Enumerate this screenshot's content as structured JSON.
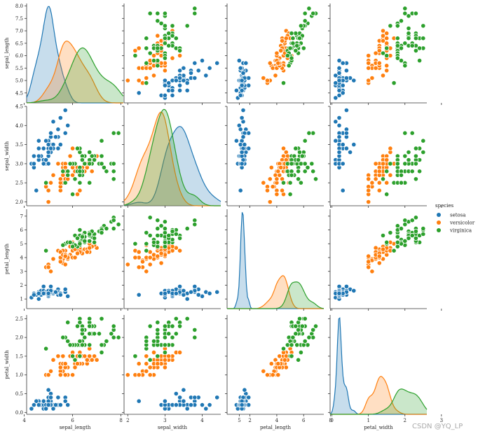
{
  "chart_data": {
    "type": "scatter",
    "variables": [
      "sepal_length",
      "sepal_width",
      "petal_length",
      "petal_width"
    ],
    "axis_ranges": {
      "sepal_length": [
        4.1,
        8.1
      ],
      "sepal_width": [
        1.9,
        4.5
      ],
      "petal_length": [
        0.3,
        7.5
      ],
      "petal_width": [
        -0.05,
        2.6
      ]
    },
    "x_tick_labels": {
      "sepal_length": [
        "4",
        "6",
        "8"
      ],
      "sepal_width": [
        "2",
        "3",
        "4",
        "5"
      ],
      "petal_length": [
        "2",
        "4",
        "6",
        "8"
      ],
      "petal_width": [
        "0",
        "1",
        "2",
        "3"
      ]
    },
    "y_tick_labels": {
      "sepal_length": [
        "4.5",
        "5.0",
        "5.5",
        "6.0",
        "6.5",
        "7.0",
        "7.5",
        "8.0"
      ],
      "sepal_width": [
        "2.0",
        "2.5",
        "3.0",
        "3.5",
        "4.0",
        "4.5"
      ],
      "petal_length": [
        "1",
        "2",
        "3",
        "4",
        "5",
        "6",
        "7"
      ],
      "petal_width": [
        "0.0",
        "0.5",
        "1.0",
        "1.5",
        "2.0",
        "2.5"
      ]
    },
    "legend": {
      "title": "species",
      "entries": [
        "setosa",
        "versicolor",
        "virginica"
      ],
      "position": "right"
    },
    "series": [
      {
        "name": "setosa",
        "color": "#1f77b4",
        "points": [
          [
            5.1,
            3.5,
            1.4,
            0.2
          ],
          [
            4.9,
            3.0,
            1.4,
            0.2
          ],
          [
            4.7,
            3.2,
            1.3,
            0.2
          ],
          [
            4.6,
            3.1,
            1.5,
            0.2
          ],
          [
            5.0,
            3.6,
            1.4,
            0.2
          ],
          [
            5.4,
            3.9,
            1.7,
            0.4
          ],
          [
            4.6,
            3.4,
            1.4,
            0.3
          ],
          [
            5.0,
            3.4,
            1.5,
            0.2
          ],
          [
            4.4,
            2.9,
            1.4,
            0.2
          ],
          [
            4.9,
            3.1,
            1.5,
            0.1
          ],
          [
            5.4,
            3.7,
            1.5,
            0.2
          ],
          [
            4.8,
            3.4,
            1.6,
            0.2
          ],
          [
            4.8,
            3.0,
            1.4,
            0.1
          ],
          [
            4.3,
            3.0,
            1.1,
            0.1
          ],
          [
            5.8,
            4.0,
            1.2,
            0.2
          ],
          [
            5.7,
            4.4,
            1.5,
            0.4
          ],
          [
            5.4,
            3.9,
            1.3,
            0.4
          ],
          [
            5.1,
            3.5,
            1.4,
            0.3
          ],
          [
            5.7,
            3.8,
            1.7,
            0.3
          ],
          [
            5.1,
            3.8,
            1.5,
            0.3
          ],
          [
            5.4,
            3.4,
            1.7,
            0.2
          ],
          [
            5.1,
            3.7,
            1.5,
            0.4
          ],
          [
            4.6,
            3.6,
            1.0,
            0.2
          ],
          [
            5.1,
            3.3,
            1.7,
            0.5
          ],
          [
            4.8,
            3.4,
            1.9,
            0.2
          ],
          [
            5.0,
            3.0,
            1.6,
            0.2
          ],
          [
            5.0,
            3.4,
            1.6,
            0.4
          ],
          [
            5.2,
            3.5,
            1.5,
            0.2
          ],
          [
            5.2,
            3.4,
            1.4,
            0.2
          ],
          [
            4.7,
            3.2,
            1.6,
            0.2
          ],
          [
            4.8,
            3.1,
            1.6,
            0.2
          ],
          [
            5.4,
            3.4,
            1.5,
            0.4
          ],
          [
            5.2,
            4.1,
            1.5,
            0.1
          ],
          [
            5.5,
            4.2,
            1.4,
            0.2
          ],
          [
            4.9,
            3.1,
            1.5,
            0.2
          ],
          [
            5.0,
            3.2,
            1.2,
            0.2
          ],
          [
            5.5,
            3.5,
            1.3,
            0.2
          ],
          [
            4.9,
            3.6,
            1.4,
            0.1
          ],
          [
            4.4,
            3.0,
            1.3,
            0.2
          ],
          [
            5.1,
            3.4,
            1.5,
            0.2
          ],
          [
            5.0,
            3.5,
            1.3,
            0.3
          ],
          [
            4.5,
            2.3,
            1.3,
            0.3
          ],
          [
            4.4,
            3.2,
            1.3,
            0.2
          ],
          [
            5.0,
            3.5,
            1.6,
            0.6
          ],
          [
            5.1,
            3.8,
            1.9,
            0.4
          ],
          [
            4.8,
            3.0,
            1.4,
            0.3
          ],
          [
            5.1,
            3.8,
            1.6,
            0.2
          ],
          [
            4.6,
            3.2,
            1.4,
            0.2
          ],
          [
            5.3,
            3.7,
            1.5,
            0.2
          ],
          [
            5.0,
            3.3,
            1.4,
            0.2
          ]
        ]
      },
      {
        "name": "versicolor",
        "color": "#ff7f0e",
        "points": [
          [
            7.0,
            3.2,
            4.7,
            1.4
          ],
          [
            6.4,
            3.2,
            4.5,
            1.5
          ],
          [
            6.9,
            3.1,
            4.9,
            1.5
          ],
          [
            5.5,
            2.3,
            4.0,
            1.3
          ],
          [
            6.5,
            2.8,
            4.6,
            1.5
          ],
          [
            5.7,
            2.8,
            4.5,
            1.3
          ],
          [
            6.3,
            3.3,
            4.7,
            1.6
          ],
          [
            4.9,
            2.4,
            3.3,
            1.0
          ],
          [
            6.6,
            2.9,
            4.6,
            1.3
          ],
          [
            5.2,
            2.7,
            3.9,
            1.4
          ],
          [
            5.0,
            2.0,
            3.5,
            1.0
          ],
          [
            5.9,
            3.0,
            4.2,
            1.5
          ],
          [
            6.0,
            2.2,
            4.0,
            1.0
          ],
          [
            6.1,
            2.9,
            4.7,
            1.4
          ],
          [
            5.6,
            2.9,
            3.6,
            1.3
          ],
          [
            6.7,
            3.1,
            4.4,
            1.4
          ],
          [
            5.6,
            3.0,
            4.5,
            1.5
          ],
          [
            5.8,
            2.7,
            4.1,
            1.0
          ],
          [
            6.2,
            2.2,
            4.5,
            1.5
          ],
          [
            5.6,
            2.5,
            3.9,
            1.1
          ],
          [
            5.9,
            3.2,
            4.8,
            1.8
          ],
          [
            6.1,
            2.8,
            4.0,
            1.3
          ],
          [
            6.3,
            2.5,
            4.9,
            1.5
          ],
          [
            6.1,
            2.8,
            4.7,
            1.2
          ],
          [
            6.4,
            2.9,
            4.3,
            1.3
          ],
          [
            6.6,
            3.0,
            4.4,
            1.4
          ],
          [
            6.8,
            2.8,
            4.8,
            1.4
          ],
          [
            6.7,
            3.0,
            5.0,
            1.7
          ],
          [
            6.0,
            2.9,
            4.5,
            1.5
          ],
          [
            5.7,
            2.6,
            3.5,
            1.0
          ],
          [
            5.5,
            2.4,
            3.8,
            1.1
          ],
          [
            5.5,
            2.4,
            3.7,
            1.0
          ],
          [
            5.8,
            2.7,
            3.9,
            1.2
          ],
          [
            6.0,
            2.7,
            5.1,
            1.6
          ],
          [
            5.4,
            3.0,
            4.5,
            1.5
          ],
          [
            6.0,
            3.4,
            4.5,
            1.6
          ],
          [
            6.7,
            3.1,
            4.7,
            1.5
          ],
          [
            6.3,
            2.3,
            4.4,
            1.3
          ],
          [
            5.6,
            3.0,
            4.1,
            1.3
          ],
          [
            5.5,
            2.5,
            4.0,
            1.3
          ],
          [
            5.5,
            2.6,
            4.4,
            1.2
          ],
          [
            6.1,
            3.0,
            4.6,
            1.4
          ],
          [
            5.8,
            2.6,
            4.0,
            1.2
          ],
          [
            5.0,
            2.3,
            3.3,
            1.0
          ],
          [
            5.6,
            2.7,
            4.2,
            1.3
          ],
          [
            5.7,
            3.0,
            4.2,
            1.2
          ],
          [
            5.7,
            2.9,
            4.2,
            1.3
          ],
          [
            6.2,
            2.9,
            4.3,
            1.3
          ],
          [
            5.1,
            2.5,
            3.0,
            1.1
          ],
          [
            5.7,
            2.8,
            4.1,
            1.3
          ]
        ]
      },
      {
        "name": "virginica",
        "color": "#2ca02c",
        "points": [
          [
            6.3,
            3.3,
            6.0,
            2.5
          ],
          [
            5.8,
            2.7,
            5.1,
            1.9
          ],
          [
            7.1,
            3.0,
            5.9,
            2.1
          ],
          [
            6.3,
            2.9,
            5.6,
            1.8
          ],
          [
            6.5,
            3.0,
            5.8,
            2.2
          ],
          [
            7.6,
            3.0,
            6.6,
            2.1
          ],
          [
            4.9,
            2.5,
            4.5,
            1.7
          ],
          [
            7.3,
            2.9,
            6.3,
            1.8
          ],
          [
            6.7,
            2.5,
            5.8,
            1.8
          ],
          [
            7.2,
            3.6,
            6.1,
            2.5
          ],
          [
            6.5,
            3.2,
            5.1,
            2.0
          ],
          [
            6.4,
            2.7,
            5.3,
            1.9
          ],
          [
            6.8,
            3.0,
            5.5,
            2.1
          ],
          [
            5.7,
            2.5,
            5.0,
            2.0
          ],
          [
            5.8,
            2.8,
            5.1,
            2.4
          ],
          [
            6.4,
            3.2,
            5.3,
            2.3
          ],
          [
            6.5,
            3.0,
            5.5,
            1.8
          ],
          [
            7.7,
            3.8,
            6.7,
            2.2
          ],
          [
            7.7,
            2.6,
            6.9,
            2.3
          ],
          [
            6.0,
            2.2,
            5.0,
            1.5
          ],
          [
            6.9,
            3.2,
            5.7,
            2.3
          ],
          [
            5.6,
            2.8,
            4.9,
            2.0
          ],
          [
            7.7,
            2.8,
            6.7,
            2.0
          ],
          [
            6.3,
            2.7,
            4.9,
            1.8
          ],
          [
            6.7,
            3.3,
            5.7,
            2.1
          ],
          [
            7.2,
            3.2,
            6.0,
            1.8
          ],
          [
            6.2,
            2.8,
            4.8,
            1.8
          ],
          [
            6.1,
            3.0,
            4.9,
            1.8
          ],
          [
            6.4,
            2.8,
            5.6,
            2.1
          ],
          [
            7.2,
            3.0,
            5.8,
            1.6
          ],
          [
            7.4,
            2.8,
            6.1,
            1.9
          ],
          [
            7.9,
            3.8,
            6.4,
            2.0
          ],
          [
            6.4,
            2.8,
            5.6,
            2.2
          ],
          [
            6.3,
            2.8,
            5.1,
            1.5
          ],
          [
            6.1,
            2.6,
            5.6,
            1.4
          ],
          [
            7.7,
            3.0,
            6.1,
            2.3
          ],
          [
            6.3,
            3.4,
            5.6,
            2.4
          ],
          [
            6.4,
            3.1,
            5.5,
            1.8
          ],
          [
            6.0,
            3.0,
            4.8,
            1.8
          ],
          [
            6.9,
            3.1,
            5.4,
            2.1
          ],
          [
            6.7,
            3.1,
            5.6,
            2.4
          ],
          [
            6.9,
            3.1,
            5.1,
            2.3
          ],
          [
            5.8,
            2.7,
            5.1,
            1.9
          ],
          [
            6.8,
            3.2,
            5.9,
            2.3
          ],
          [
            6.7,
            3.3,
            5.7,
            2.5
          ],
          [
            6.7,
            3.0,
            5.2,
            2.3
          ],
          [
            6.3,
            2.5,
            5.0,
            1.9
          ],
          [
            6.5,
            3.0,
            5.2,
            2.0
          ],
          [
            6.2,
            3.4,
            5.4,
            2.3
          ],
          [
            5.9,
            3.0,
            5.1,
            1.8
          ]
        ]
      }
    ]
  },
  "watermark": "CSDN @YQ_LP"
}
